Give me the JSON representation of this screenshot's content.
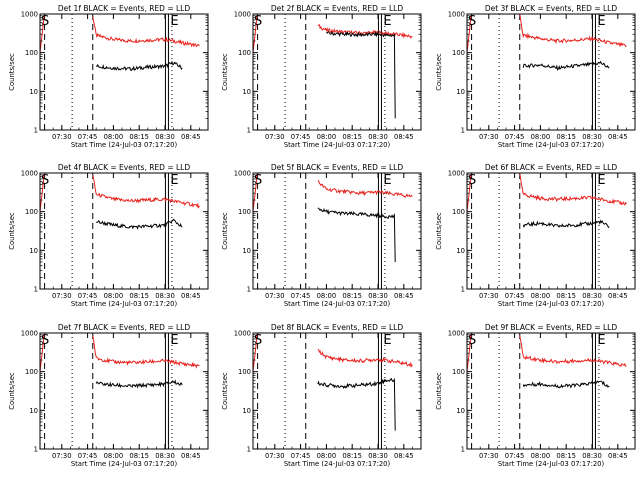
{
  "chart_data": {
    "type": "line",
    "yscale": "log",
    "ylim": [
      1,
      1000
    ],
    "yticks": [
      "1",
      "10",
      "100",
      "1000"
    ],
    "x_range": [
      "07:17:20",
      "08:55:00"
    ],
    "xticks": [
      "07:30",
      "07:45",
      "08:00",
      "08:15",
      "08:30",
      "08:45"
    ],
    "xlabel": "Start Time (24-Jul-03 07:17:20)",
    "ylabel": "Counts/sec",
    "markers": {
      "start": "S",
      "end": "E"
    },
    "colors": {
      "events": "#000000",
      "lld": "#e8211d"
    },
    "vertical_lines": [
      {
        "time": "07:20",
        "style": "dash"
      },
      {
        "time": "07:36",
        "style": "dot"
      },
      {
        "time": "07:48",
        "style": "dash"
      },
      {
        "time": "08:32",
        "style": "solid"
      },
      {
        "time": "08:34",
        "style": "dot"
      }
    ],
    "panels": [
      {
        "title": "Det 1f BLACK = Events, RED = LLD",
        "series": [
          {
            "name": "BLACK",
            "x": [
              "07:50",
              "08:00",
              "08:10",
              "08:20",
              "08:30",
              "08:35",
              "08:40"
            ],
            "y": [
              45,
              40,
              38,
              42,
              45,
              55,
              40
            ]
          },
          {
            "name": "RED",
            "x": [
              "07:48",
              "07:50",
              "08:00",
              "08:10",
              "08:20",
              "08:30",
              "08:40",
              "08:50"
            ],
            "y": [
              900,
              280,
              220,
              200,
              210,
              220,
              180,
              150
            ]
          }
        ]
      },
      {
        "title": "Det 2f BLACK = Events, RED = LLD",
        "series": [
          {
            "name": "BLACK",
            "x": [
              "08:00",
              "08:10",
              "08:20",
              "08:30",
              "08:35",
              "08:40"
            ],
            "y": [
              320,
              300,
              290,
              300,
              280,
              2
            ]
          },
          {
            "name": "RED",
            "x": [
              "07:55",
              "08:00",
              "08:10",
              "08:20",
              "08:30",
              "08:40",
              "08:50"
            ],
            "y": [
              500,
              380,
              340,
              320,
              330,
              300,
              260
            ]
          }
        ]
      },
      {
        "title": "Det 3f BLACK = Events, RED = LLD",
        "series": [
          {
            "name": "BLACK",
            "x": [
              "07:50",
              "08:00",
              "08:10",
              "08:20",
              "08:30",
              "08:35",
              "08:40"
            ],
            "y": [
              45,
              48,
              40,
              45,
              50,
              55,
              40
            ]
          },
          {
            "name": "RED",
            "x": [
              "07:48",
              "07:50",
              "08:00",
              "08:10",
              "08:20",
              "08:30",
              "08:40",
              "08:50"
            ],
            "y": [
              900,
              280,
              230,
              200,
              210,
              230,
              180,
              150
            ]
          }
        ]
      },
      {
        "title": "Det 4f BLACK = Events, RED = LLD",
        "series": [
          {
            "name": "BLACK",
            "x": [
              "07:50",
              "08:00",
              "08:10",
              "08:20",
              "08:30",
              "08:35",
              "08:40"
            ],
            "y": [
              55,
              45,
              40,
              42,
              45,
              60,
              40
            ]
          },
          {
            "name": "RED",
            "x": [
              "07:48",
              "07:50",
              "08:00",
              "08:10",
              "08:20",
              "08:30",
              "08:40",
              "08:50"
            ],
            "y": [
              900,
              280,
              210,
              190,
              200,
              210,
              170,
              140
            ]
          }
        ]
      },
      {
        "title": "Det 5f BLACK = Events, RED = LLD",
        "series": [
          {
            "name": "BLACK",
            "x": [
              "07:55",
              "08:00",
              "08:10",
              "08:20",
              "08:30",
              "08:35",
              "08:40"
            ],
            "y": [
              120,
              100,
              90,
              85,
              80,
              75,
              5
            ]
          },
          {
            "name": "RED",
            "x": [
              "07:55",
              "08:00",
              "08:10",
              "08:20",
              "08:30",
              "08:40",
              "08:50"
            ],
            "y": [
              600,
              380,
              330,
              300,
              320,
              280,
              250
            ]
          }
        ]
      },
      {
        "title": "Det 6f BLACK = Events, RED = LLD",
        "series": [
          {
            "name": "BLACK",
            "x": [
              "07:50",
              "08:00",
              "08:10",
              "08:20",
              "08:30",
              "08:35",
              "08:40"
            ],
            "y": [
              45,
              50,
              42,
              45,
              50,
              55,
              40
            ]
          },
          {
            "name": "RED",
            "x": [
              "07:48",
              "07:50",
              "08:00",
              "08:10",
              "08:20",
              "08:30",
              "08:40",
              "08:50"
            ],
            "y": [
              900,
              280,
              220,
              210,
              220,
              230,
              190,
              160
            ]
          }
        ]
      },
      {
        "title": "Det 7f BLACK = Events, RED = LLD",
        "series": [
          {
            "name": "BLACK",
            "x": [
              "07:50",
              "08:00",
              "08:10",
              "08:20",
              "08:30",
              "08:35",
              "08:40"
            ],
            "y": [
              50,
              45,
              42,
              45,
              48,
              55,
              45
            ]
          },
          {
            "name": "RED",
            "x": [
              "07:48",
              "07:50",
              "08:00",
              "08:10",
              "08:20",
              "08:30",
              "08:40",
              "08:50"
            ],
            "y": [
              900,
              220,
              180,
              170,
              180,
              190,
              160,
              140
            ]
          }
        ]
      },
      {
        "title": "Det 8f BLACK = Events, RED = LLD",
        "series": [
          {
            "name": "BLACK",
            "x": [
              "07:55",
              "08:00",
              "08:10",
              "08:20",
              "08:30",
              "08:35",
              "08:40"
            ],
            "y": [
              50,
              45,
              42,
              45,
              50,
              60,
              3
            ]
          },
          {
            "name": "RED",
            "x": [
              "07:55",
              "08:00",
              "08:10",
              "08:20",
              "08:30",
              "08:40",
              "08:50"
            ],
            "y": [
              350,
              240,
              200,
              190,
              210,
              180,
              150
            ]
          }
        ]
      },
      {
        "title": "Det 9f BLACK = Events, RED = LLD",
        "series": [
          {
            "name": "BLACK",
            "x": [
              "07:50",
              "08:00",
              "08:10",
              "08:20",
              "08:30",
              "08:35",
              "08:40"
            ],
            "y": [
              45,
              48,
              42,
              44,
              50,
              55,
              40
            ]
          },
          {
            "name": "RED",
            "x": [
              "07:48",
              "07:50",
              "08:00",
              "08:10",
              "08:20",
              "08:30",
              "08:40",
              "08:50"
            ],
            "y": [
              900,
              240,
              200,
              180,
              190,
              200,
              170,
              140
            ]
          }
        ]
      }
    ]
  }
}
